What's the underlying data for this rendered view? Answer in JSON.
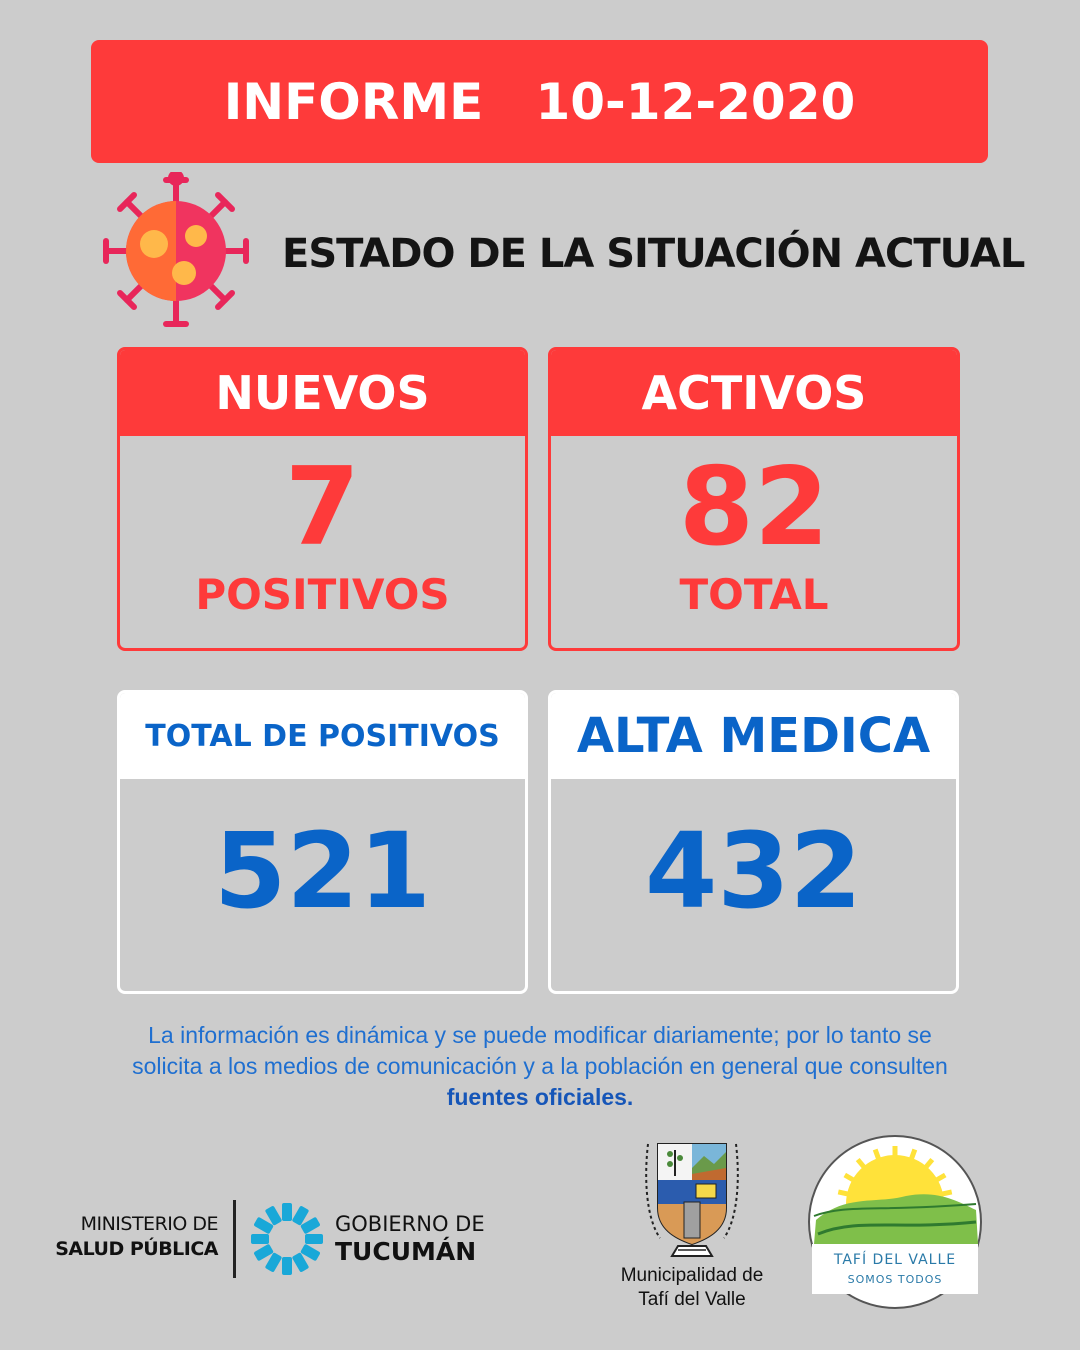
{
  "banner": {
    "label": "INFORME",
    "date": "10-12-2020"
  },
  "subtitle": "ESTADO DE LA SITUACIÓN ACTUAL",
  "cards": {
    "nuevos": {
      "title": "NUEVOS",
      "value": "7",
      "unit": "POSITIVOS"
    },
    "activos": {
      "title": "ACTIVOS",
      "value": "82",
      "unit": "TOTAL"
    },
    "total_positivos": {
      "title": "TOTAL DE POSITIVOS",
      "value": "521"
    },
    "alta_medica": {
      "title": "ALTA MEDICA",
      "value": "432"
    }
  },
  "disclaimer": {
    "line1": "La información es dinámica y se puede modificar diariamente; por lo tanto se",
    "line2": "solicita a los medios de comunicación y a la población en general que consulten",
    "line3": "fuentes oficiales."
  },
  "footer": {
    "ministerio_line1": "MINISTERIO DE",
    "ministerio_line2": "SALUD PÚBLICA",
    "gobierno_line1": "GOBIERNO DE",
    "gobierno_line2": "TUCUMÁN",
    "municipalidad_line1": "Municipalidad de",
    "municipalidad_line2": "Tafí del Valle",
    "tafi_logo_line1": "TAFÍ DEL VALLE",
    "tafi_logo_line2": "SOMOS TODOS"
  },
  "colors": {
    "red": "#fe3a3a",
    "blue": "#0a64c8",
    "background": "#cccccc"
  },
  "icons": [
    "virus-icon",
    "gobierno-tucuman-logo",
    "municipal-coat-of-arms",
    "tafi-del-valle-logo"
  ]
}
